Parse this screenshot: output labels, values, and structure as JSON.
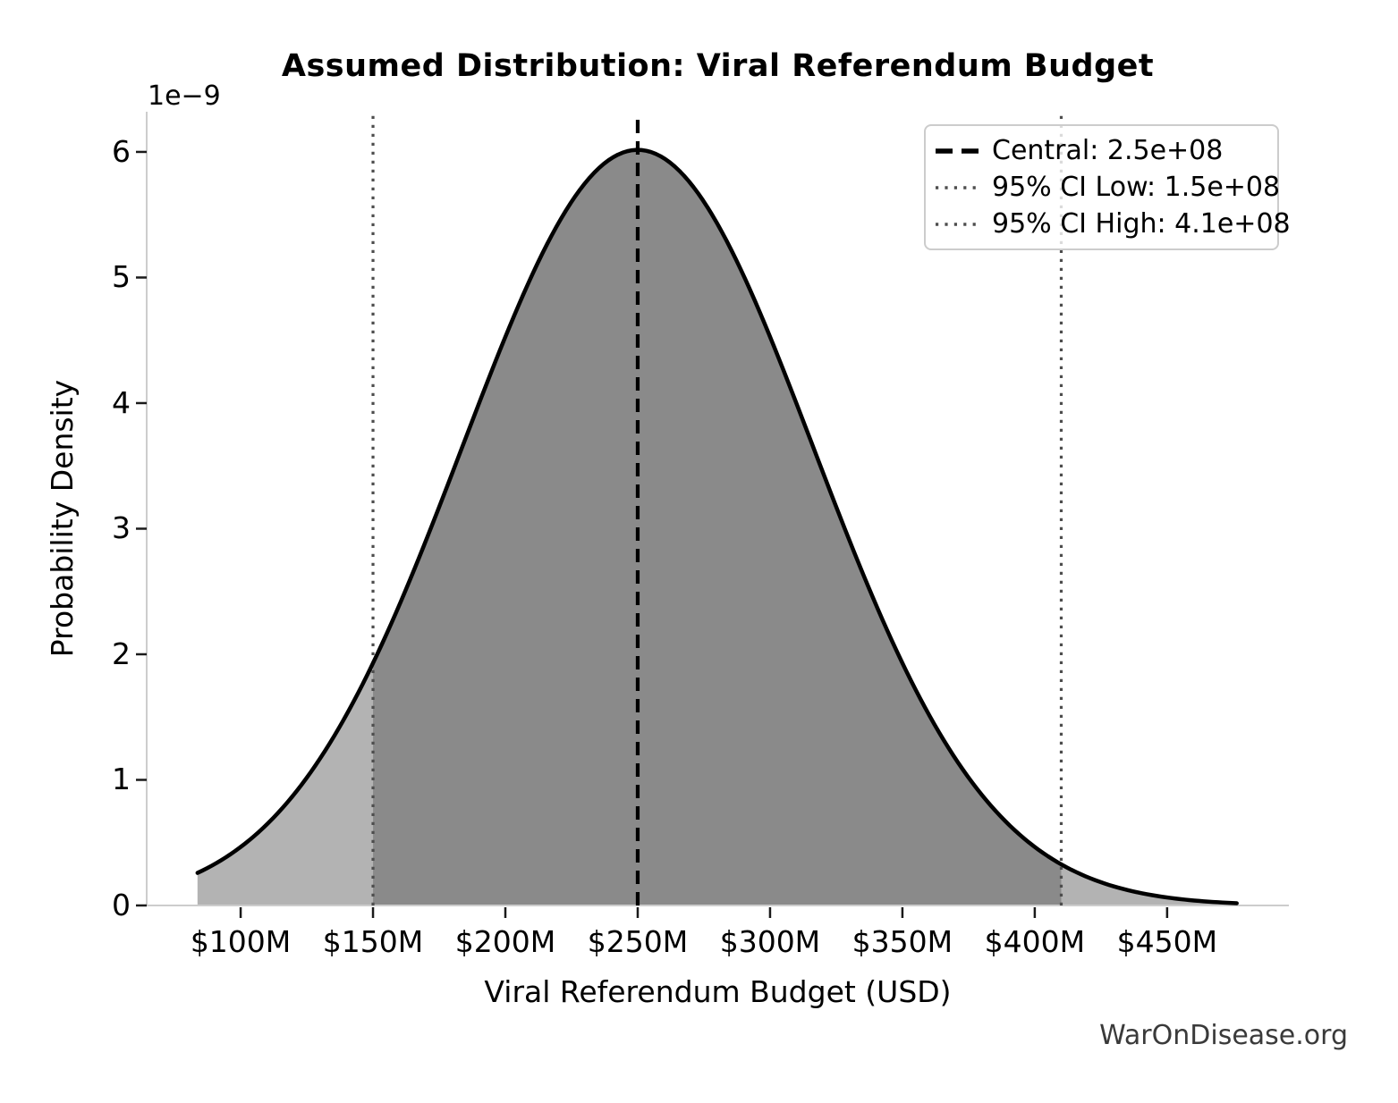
{
  "chart_data": {
    "type": "area",
    "title": "Assumed Distribution: Viral Referendum Budget",
    "xlabel": "Viral Referendum Budget (USD)",
    "ylabel": "Probability Density",
    "y_axis_offset_label": "1e−9",
    "watermark": "WarOnDisease.org",
    "distribution": {
      "kind": "normal",
      "mean_usd": 250000000,
      "sd_usd": 66310000
    },
    "central_usd": 250000000,
    "ci_low_usd": 150000000,
    "ci_high_usd": 410000000,
    "peak_density": 6.02e-09,
    "density_at_ci_low": 1.93e-09,
    "density_at_ci_high": 3.3e-10,
    "curve_range_musd": [
      83.7,
      476.3
    ],
    "xlim_musd": [
      64.5,
      496.0
    ],
    "ylim_density_1e9": [
      0,
      6.32
    ],
    "grid": false,
    "x_ticks": [
      {
        "m": 100,
        "label": "$100M"
      },
      {
        "m": 150,
        "label": "$150M"
      },
      {
        "m": 200,
        "label": "$200M"
      },
      {
        "m": 250,
        "label": "$250M"
      },
      {
        "m": 300,
        "label": "$300M"
      },
      {
        "m": 350,
        "label": "$350M"
      },
      {
        "m": 400,
        "label": "$400M"
      },
      {
        "m": 450,
        "label": "$450M"
      }
    ],
    "y_ticks": [
      {
        "v": 0,
        "label": "0"
      },
      {
        "v": 1,
        "label": "1"
      },
      {
        "v": 2,
        "label": "2"
      },
      {
        "v": 3,
        "label": "3"
      },
      {
        "v": 4,
        "label": "4"
      },
      {
        "v": 5,
        "label": "5"
      },
      {
        "v": 6,
        "label": "6"
      }
    ],
    "legend": {
      "position": "upper-right",
      "entries": [
        {
          "label": "Central: 2.5e+08",
          "line_style": "dashed",
          "color": "#000000"
        },
        {
          "label": "95% CI Low: 1.5e+08",
          "line_style": "dotted",
          "color": "#4d4d4d"
        },
        {
          "label": "95% CI High: 4.1e+08",
          "line_style": "dotted",
          "color": "#4d4d4d"
        }
      ]
    },
    "colors": {
      "curve": "#000000",
      "fill_central": "#8a8a8a",
      "fill_tail": "#b3b3b3",
      "central_line": "#000000",
      "ci_line": "#4d4d4d",
      "spine": "#cdcdcd",
      "tick_mark": "#1a1a1a",
      "label_text": "#000000",
      "watermark_text": "#3a3a3a",
      "legend_border": "#cccccc"
    }
  }
}
